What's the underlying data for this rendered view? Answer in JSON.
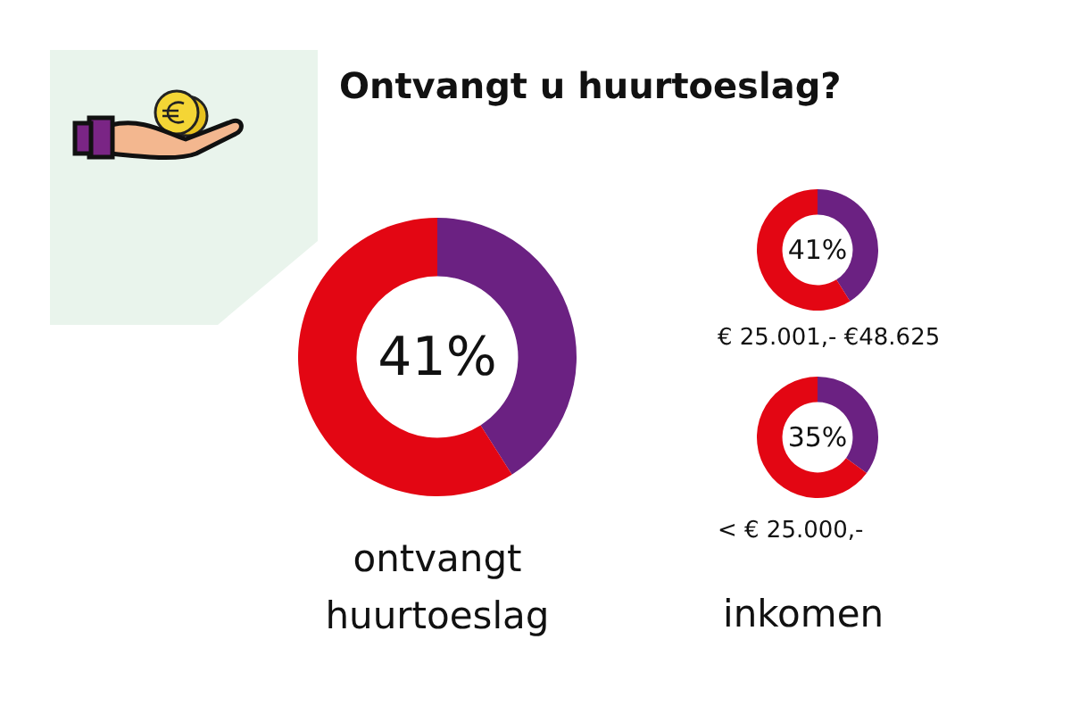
{
  "chart_data": [
    {
      "type": "donut",
      "title": "Ontvangt u huurtoeslag?",
      "categories": [
        null,
        null
      ],
      "values": [
        41,
        59
      ],
      "colors": [
        "#6b2182",
        "#e30613"
      ],
      "annotations": [
        "41%"
      ],
      "xlabel": "ontvangt huurtoeslag"
    },
    {
      "type": "donut",
      "categories": [
        null,
        null
      ],
      "values": [
        41,
        59
      ],
      "colors": [
        "#6b2182",
        "#e30613"
      ],
      "annotations": [
        "41%"
      ],
      "xlabel": "€ 25.001,- €48.625"
    },
    {
      "type": "donut",
      "categories": [
        null,
        null
      ],
      "values": [
        35,
        65
      ],
      "colors": [
        "#6b2182",
        "#e30613"
      ],
      "annotations": [
        "35%",
        "inkomen"
      ],
      "xlabel": "< € 25.000,-"
    }
  ]
}
